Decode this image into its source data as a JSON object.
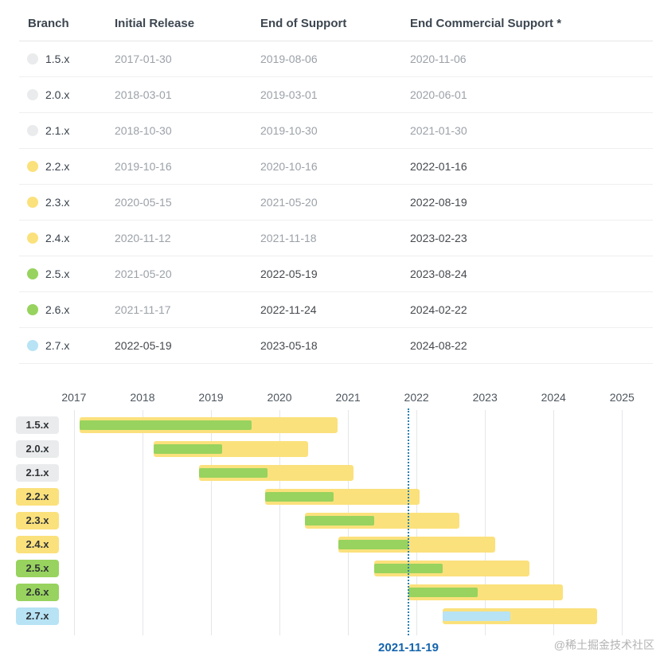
{
  "page": {
    "watermark": "@稀土掘金技术社区"
  },
  "colors": {
    "yellow": "#fbe17c",
    "green": "#97d35e",
    "blue": "#b7e3f5",
    "gray": "#e9ebec",
    "accent_line": "#2680b4",
    "accent_label": "#1464ad"
  },
  "table": {
    "headers": [
      "Branch",
      "Initial Release",
      "End of Support",
      "End Commercial Support *"
    ],
    "rows": [
      {
        "branch": "1.5.x",
        "dot": "gray",
        "initial_release": "2017-01-30",
        "end_of_support": "2019-08-06",
        "end_commercial_support": "2020-11-06"
      },
      {
        "branch": "2.0.x",
        "dot": "gray",
        "initial_release": "2018-03-01",
        "end_of_support": "2019-03-01",
        "end_commercial_support": "2020-06-01"
      },
      {
        "branch": "2.1.x",
        "dot": "gray",
        "initial_release": "2018-10-30",
        "end_of_support": "2019-10-30",
        "end_commercial_support": "2021-01-30"
      },
      {
        "branch": "2.2.x",
        "dot": "yellow",
        "initial_release": "2019-10-16",
        "end_of_support": "2020-10-16",
        "end_commercial_support": "2022-01-16"
      },
      {
        "branch": "2.3.x",
        "dot": "yellow",
        "initial_release": "2020-05-15",
        "end_of_support": "2021-05-20",
        "end_commercial_support": "2022-08-19"
      },
      {
        "branch": "2.4.x",
        "dot": "yellow",
        "initial_release": "2020-11-12",
        "end_of_support": "2021-11-18",
        "end_commercial_support": "2023-02-23"
      },
      {
        "branch": "2.5.x",
        "dot": "green",
        "initial_release": "2021-05-20",
        "end_of_support": "2022-05-19",
        "end_commercial_support": "2023-08-24"
      },
      {
        "branch": "2.6.x",
        "dot": "green",
        "initial_release": "2021-11-17",
        "end_of_support": "2022-11-24",
        "end_commercial_support": "2024-02-22"
      },
      {
        "branch": "2.7.x",
        "dot": "blue",
        "initial_release": "2022-05-19",
        "end_of_support": "2023-05-18",
        "end_commercial_support": "2024-08-22"
      }
    ]
  },
  "chart_data": {
    "type": "gantt",
    "x_ticks": [
      2017,
      2018,
      2019,
      2020,
      2021,
      2022,
      2023,
      2024,
      2025
    ],
    "xlim": [
      2016.85,
      2025.45
    ],
    "grid": "vertical-year-lines",
    "legend": "none",
    "today": {
      "date": "2021-11-19",
      "label": "2021-11-19"
    },
    "rows": [
      {
        "label": "1.5.x",
        "chip": "gray",
        "inner": "green",
        "start": "2017-01-30",
        "oss_end": "2019-08-06",
        "commercial_end": "2020-11-06"
      },
      {
        "label": "2.0.x",
        "chip": "gray",
        "inner": "green",
        "start": "2018-03-01",
        "oss_end": "2019-03-01",
        "commercial_end": "2020-06-01"
      },
      {
        "label": "2.1.x",
        "chip": "gray",
        "inner": "green",
        "start": "2018-10-30",
        "oss_end": "2019-10-30",
        "commercial_end": "2021-01-30"
      },
      {
        "label": "2.2.x",
        "chip": "yellow",
        "inner": "green",
        "start": "2019-10-16",
        "oss_end": "2020-10-16",
        "commercial_end": "2022-01-16"
      },
      {
        "label": "2.3.x",
        "chip": "yellow",
        "inner": "green",
        "start": "2020-05-15",
        "oss_end": "2021-05-20",
        "commercial_end": "2022-08-19"
      },
      {
        "label": "2.4.x",
        "chip": "yellow",
        "inner": "green",
        "start": "2020-11-12",
        "oss_end": "2021-11-18",
        "commercial_end": "2023-02-23"
      },
      {
        "label": "2.5.x",
        "chip": "green",
        "inner": "green",
        "start": "2021-05-20",
        "oss_end": "2022-05-19",
        "commercial_end": "2023-08-24"
      },
      {
        "label": "2.6.x",
        "chip": "green",
        "inner": "green",
        "start": "2021-11-17",
        "oss_end": "2022-11-24",
        "commercial_end": "2024-02-22"
      },
      {
        "label": "2.7.x",
        "chip": "blue",
        "inner": "blue",
        "start": "2022-05-19",
        "oss_end": "2023-05-18",
        "commercial_end": "2024-08-22"
      }
    ]
  }
}
